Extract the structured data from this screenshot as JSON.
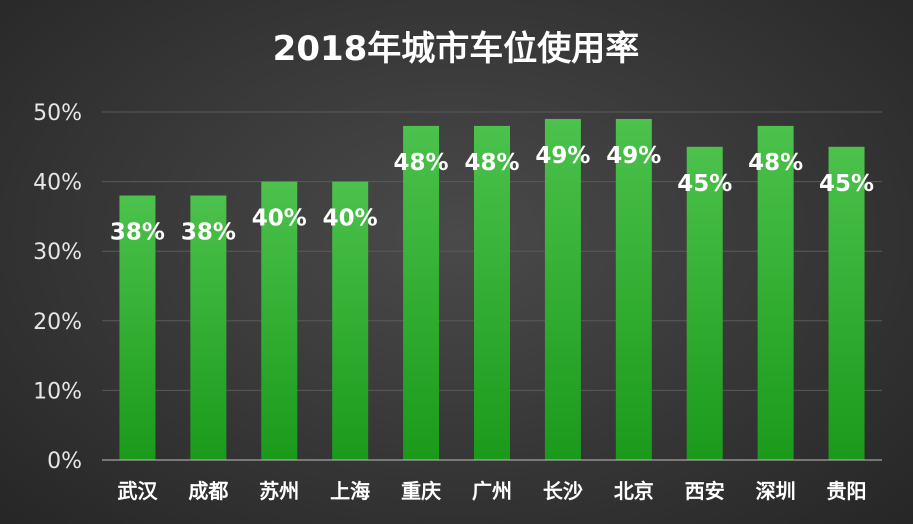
{
  "chart_data": {
    "type": "bar",
    "title": "2018年城市车位使用率",
    "xlabel": "",
    "ylabel": "",
    "categories": [
      "武汉",
      "成都",
      "苏州",
      "上海",
      "重庆",
      "广州",
      "长沙",
      "北京",
      "西安",
      "深圳",
      "贵阳"
    ],
    "values": [
      38,
      38,
      40,
      40,
      48,
      48,
      49,
      49,
      45,
      48,
      45
    ],
    "data_labels": [
      "38%",
      "38%",
      "40%",
      "40%",
      "48%",
      "48%",
      "49%",
      "49%",
      "45%",
      "48%",
      "45%"
    ],
    "ylim": [
      0,
      50
    ],
    "yticks": [
      0,
      10,
      20,
      30,
      40,
      50
    ],
    "ytick_labels": [
      "0%",
      "10%",
      "20%",
      "30%",
      "40%",
      "50%"
    ],
    "grid": true,
    "legend": "none"
  },
  "colors": {
    "bar_top": "#4cc24c",
    "bar_bottom": "#1a9a1a",
    "background": "#3a3a3a",
    "text": "#ffffff"
  }
}
